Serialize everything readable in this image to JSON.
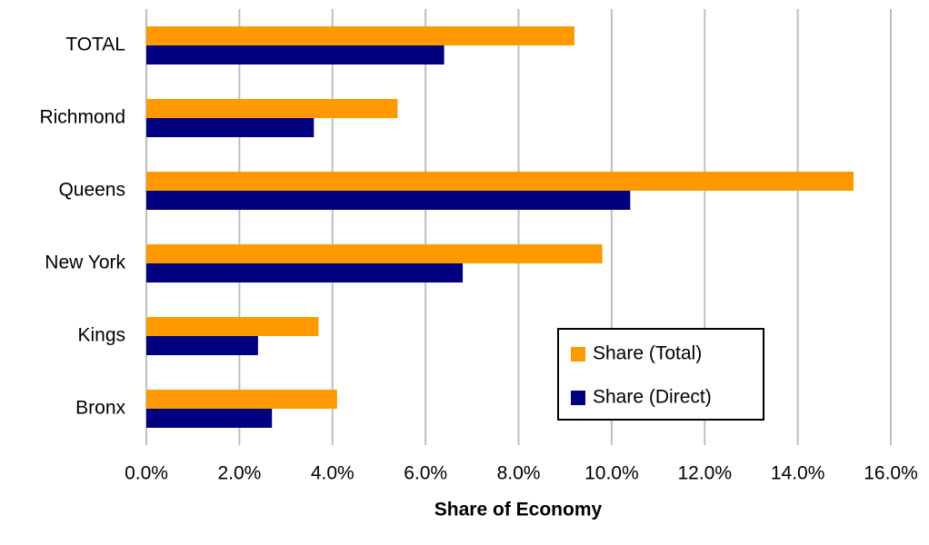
{
  "chart_data": {
    "type": "hbar",
    "xlabel": "Share of Economy",
    "categories": [
      "TOTAL",
      "Richmond",
      "Queens",
      "New York",
      "Kings",
      "Bronx"
    ],
    "series": [
      {
        "name": "Share (Total)",
        "color": "#ff9900",
        "values": [
          9.2,
          5.4,
          15.2,
          9.8,
          3.7,
          4.1
        ]
      },
      {
        "name": "Share (Direct)",
        "color": "#000080",
        "values": [
          6.4,
          3.6,
          10.4,
          6.8,
          2.4,
          2.7
        ]
      }
    ],
    "xlim": [
      0,
      16
    ],
    "xticks": [
      {
        "value": 0,
        "label": "0.0%"
      },
      {
        "value": 2,
        "label": "2.0%"
      },
      {
        "value": 4,
        "label": "4.0%"
      },
      {
        "value": 6,
        "label": "6.0%"
      },
      {
        "value": 8,
        "label": "8.0%"
      },
      {
        "value": 10,
        "label": "10.0%"
      },
      {
        "value": 12,
        "label": "12.0%"
      },
      {
        "value": 14,
        "label": "14.0%"
      },
      {
        "value": 16,
        "label": "16.0%"
      }
    ],
    "grid": true,
    "legend": "lower right"
  }
}
